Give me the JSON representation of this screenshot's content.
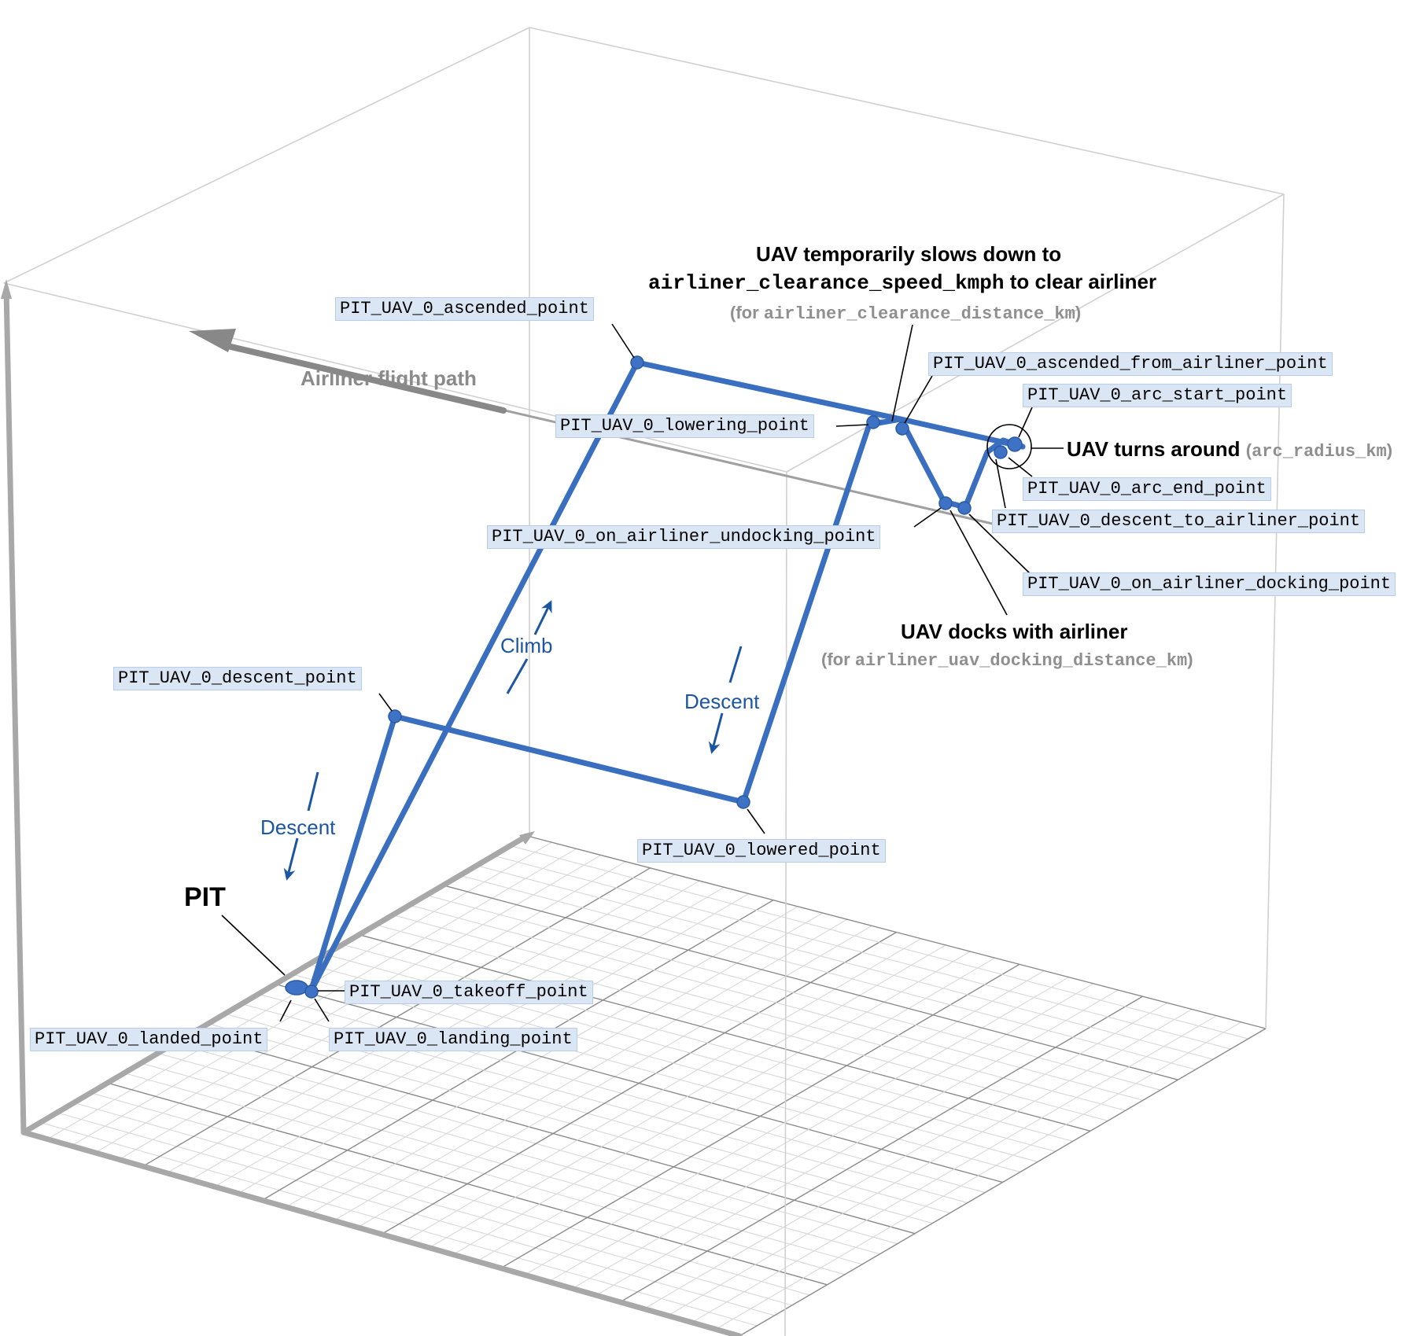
{
  "labels": {
    "ascended_point": "PIT_UAV_0_ascended_point",
    "ascended_from_airliner_point": "PIT_UAV_0_ascended_from_airliner_point",
    "arc_start_point": "PIT_UAV_0_arc_start_point",
    "lowering_point": "PIT_UAV_0_lowering_point",
    "arc_end_point": "PIT_UAV_0_arc_end_point",
    "descent_to_airliner_point": "PIT_UAV_0_descent_to_airliner_point",
    "on_airliner_undocking_point": "PIT_UAV_0_on_airliner_undocking_point",
    "on_airliner_docking_point": "PIT_UAV_0_on_airliner_docking_point",
    "descent_point": "PIT_UAV_0_descent_point",
    "lowered_point": "PIT_UAV_0_lowered_point",
    "takeoff_point": "PIT_UAV_0_takeoff_point",
    "landed_point": "PIT_UAV_0_landed_point",
    "landing_point": "PIT_UAV_0_landing_point"
  },
  "annotations": {
    "slowdown_line1": "UAV temporarily slows down to",
    "slowdown_line2_mono": "airliner_clearance_speed_kmph",
    "slowdown_line2_tail": " to clear airliner",
    "slowdown_note_open": "(for ",
    "slowdown_note_mono": "airliner_clearance_distance_km",
    "slowdown_note_close": ")",
    "turns_around": "UAV turns around",
    "turns_note_open": "(",
    "turns_note_mono": "arc_radius_km",
    "turns_note_close": ")",
    "docks": "UAV docks with airliner",
    "docks_note_open": "(for ",
    "docks_note_mono": "airliner_uav_docking_distance_km",
    "docks_note_close": ")",
    "pit": "PIT",
    "airliner_flight_path": "Airliner flight path"
  },
  "phases": {
    "climb": "Climb",
    "descent_right": "Descent",
    "descent_left": "Descent"
  },
  "colors": {
    "path": "#3a6fc0",
    "label_bg": "#dbe6f5",
    "phase_text": "#1c56a0",
    "grid": "#d8d8d8",
    "axis": "#a8a8a8"
  }
}
